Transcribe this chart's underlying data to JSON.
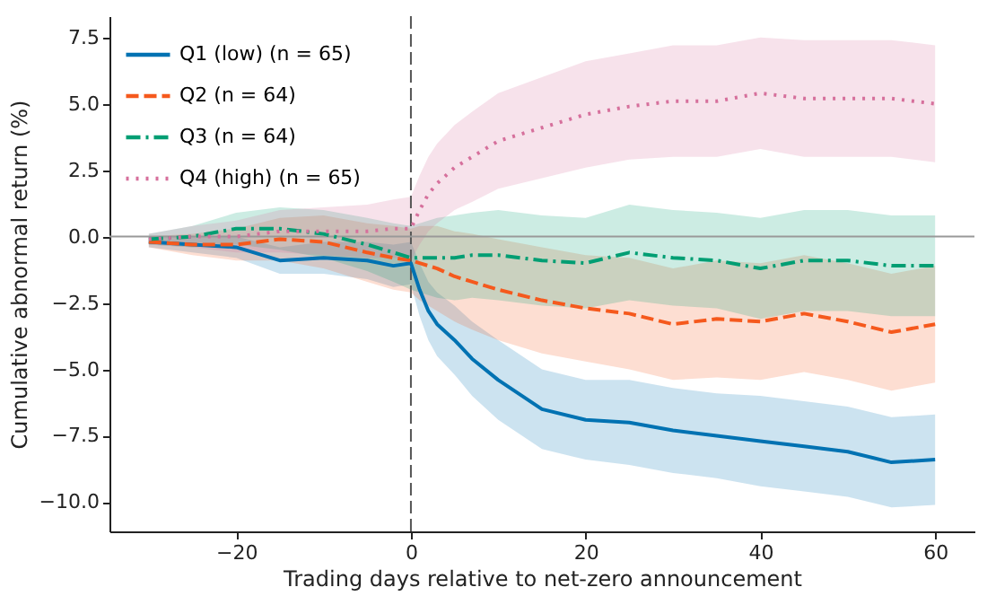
{
  "chart_data": {
    "type": "line",
    "xlabel": "Trading days relative to net-zero announcement",
    "ylabel": "Cumulative abnormal return (%)",
    "x": [
      -30,
      -25,
      -20,
      -15,
      -10,
      -5,
      -2,
      0,
      1,
      2,
      3,
      5,
      7,
      10,
      15,
      20,
      25,
      30,
      35,
      40,
      45,
      50,
      55,
      60
    ],
    "series": [
      {
        "name": "Q1 (low)  (n = 65)",
        "color": "#0072b2",
        "line_style": "solid",
        "values": [
          -0.2,
          -0.3,
          -0.4,
          -0.9,
          -0.8,
          -0.9,
          -1.1,
          -1.0,
          -2.0,
          -2.8,
          -3.3,
          -3.9,
          -4.6,
          -5.4,
          -6.5,
          -6.9,
          -7.0,
          -7.3,
          -7.5,
          -7.7,
          -7.9,
          -8.1,
          -8.5,
          -8.4
        ],
        "lower": [
          -0.4,
          -0.6,
          -0.8,
          -1.4,
          -1.4,
          -1.6,
          -1.9,
          -1.8,
          -3.0,
          -3.9,
          -4.5,
          -5.2,
          -6.0,
          -6.9,
          -8.0,
          -8.4,
          -8.6,
          -8.9,
          -9.1,
          -9.4,
          -9.6,
          -9.8,
          -10.2,
          -10.1
        ],
        "upper": [
          0.0,
          0.0,
          0.0,
          -0.4,
          -0.2,
          -0.2,
          -0.3,
          -0.2,
          -1.0,
          -1.7,
          -2.1,
          -2.6,
          -3.2,
          -3.9,
          -5.0,
          -5.4,
          -5.4,
          -5.7,
          -5.9,
          -6.0,
          -6.2,
          -6.4,
          -6.8,
          -6.7
        ]
      },
      {
        "name": "Q2  (n = 64)",
        "color": "#f5591d",
        "line_style": "dashed",
        "values": [
          -0.2,
          -0.3,
          -0.3,
          -0.1,
          -0.2,
          -0.6,
          -0.8,
          -0.9,
          -1.0,
          -1.1,
          -1.2,
          -1.5,
          -1.7,
          -2.0,
          -2.4,
          -2.7,
          -2.9,
          -3.3,
          -3.1,
          -3.2,
          -2.9,
          -3.2,
          -3.6,
          -3.3
        ],
        "lower": [
          -0.4,
          -0.7,
          -0.9,
          -0.9,
          -1.2,
          -1.7,
          -2.0,
          -2.1,
          -2.4,
          -2.6,
          -2.8,
          -3.2,
          -3.5,
          -3.9,
          -4.4,
          -4.7,
          -5.0,
          -5.4,
          -5.3,
          -5.4,
          -5.1,
          -5.4,
          -5.8,
          -5.5
        ],
        "upper": [
          0.0,
          0.1,
          0.3,
          0.7,
          0.8,
          0.5,
          0.4,
          0.3,
          0.4,
          0.4,
          0.4,
          0.2,
          0.1,
          -0.1,
          -0.4,
          -0.7,
          -0.8,
          -1.2,
          -0.9,
          -1.0,
          -0.7,
          -1.0,
          -1.4,
          -1.1
        ]
      },
      {
        "name": "Q3  (n = 64)",
        "color": "#009e73",
        "line_style": "dashdot",
        "values": [
          -0.1,
          0.0,
          0.3,
          0.3,
          0.1,
          -0.3,
          -0.6,
          -0.8,
          -0.8,
          -0.8,
          -0.8,
          -0.8,
          -0.7,
          -0.7,
          -0.9,
          -1.0,
          -0.6,
          -0.8,
          -0.9,
          -1.2,
          -0.9,
          -0.9,
          -1.1,
          -1.1
        ],
        "lower": [
          -0.3,
          -0.4,
          -0.3,
          -0.5,
          -0.8,
          -1.3,
          -1.7,
          -2.0,
          -2.1,
          -2.2,
          -2.3,
          -2.4,
          -2.3,
          -2.4,
          -2.6,
          -2.7,
          -2.4,
          -2.6,
          -2.7,
          -3.1,
          -2.8,
          -2.8,
          -3.0,
          -3.0
        ],
        "upper": [
          0.1,
          0.4,
          0.9,
          1.1,
          1.0,
          0.7,
          0.5,
          0.4,
          0.5,
          0.6,
          0.7,
          0.8,
          0.9,
          1.0,
          0.8,
          0.7,
          1.2,
          1.0,
          0.9,
          0.7,
          1.0,
          1.0,
          0.8,
          0.8
        ]
      },
      {
        "name": "Q4 (high)  (n = 65)",
        "color": "#d6709c",
        "line_style": "dotted",
        "values": [
          -0.1,
          0.0,
          0.0,
          0.2,
          0.2,
          0.2,
          0.3,
          0.3,
          1.0,
          1.6,
          2.0,
          2.6,
          3.0,
          3.6,
          4.1,
          4.6,
          4.9,
          5.1,
          5.1,
          5.4,
          5.2,
          5.2,
          5.2,
          5.0
        ],
        "lower": [
          -0.3,
          -0.4,
          -0.6,
          -0.6,
          -0.7,
          -0.8,
          -0.8,
          -0.9,
          -0.3,
          0.2,
          0.5,
          1.0,
          1.3,
          1.8,
          2.2,
          2.6,
          2.9,
          3.0,
          3.0,
          3.3,
          3.0,
          3.0,
          3.0,
          2.8
        ],
        "upper": [
          0.1,
          0.4,
          0.6,
          1.0,
          1.1,
          1.2,
          1.4,
          1.5,
          2.3,
          3.0,
          3.5,
          4.2,
          4.7,
          5.4,
          6.0,
          6.6,
          6.9,
          7.2,
          7.2,
          7.5,
          7.4,
          7.4,
          7.4,
          7.2
        ]
      }
    ],
    "xlim": [
      -34.5,
      64.5
    ],
    "xticks": [
      -20,
      0,
      20,
      40,
      60
    ],
    "ylim": [
      -11.1,
      8.3
    ],
    "yticks": [
      {
        "value": -10,
        "label": "−10.0"
      },
      {
        "value": -7.5,
        "label": "−7.5"
      },
      {
        "value": -5,
        "label": "−5.0"
      },
      {
        "value": -2.5,
        "label": "−2.5"
      },
      {
        "value": 0,
        "label": "0.0"
      },
      {
        "value": 2.5,
        "label": "2.5"
      },
      {
        "value": 5,
        "label": "5.0"
      },
      {
        "value": 7.5,
        "label": "7.5"
      }
    ],
    "ref_lines": [
      {
        "axis": "x",
        "value": 0,
        "color": "#555555",
        "line_style": "dashed"
      },
      {
        "axis": "y",
        "value": 0,
        "color": "#999999",
        "line_style": "solid"
      }
    ],
    "grid": false,
    "legend": "top left"
  }
}
